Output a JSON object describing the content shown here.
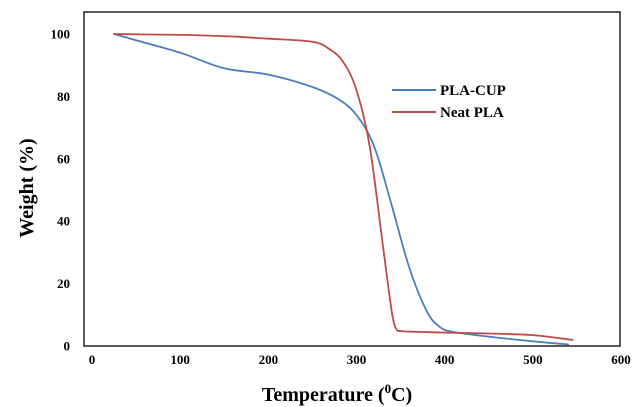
{
  "chart_data": {
    "type": "line",
    "title": "",
    "xlabel": "Temperature (",
    "xlabel_sup": "0",
    "xlabel_suffix": "C)",
    "ylabel": "Weight (%)",
    "xlim": [
      0,
      600
    ],
    "ylim": [
      0,
      105
    ],
    "x_ticks": [
      "0",
      "100",
      "200",
      "300",
      "400",
      "500",
      "600"
    ],
    "y_ticks": [
      "0",
      "20",
      "40",
      "60",
      "80",
      "100"
    ],
    "grid": false,
    "legend_position": "right",
    "series": [
      {
        "name": "PLA-CUP",
        "color": "#4a7ebb",
        "x": [
          25,
          50,
          100,
          150,
          200,
          250,
          280,
          300,
          320,
          340,
          360,
          380,
          395,
          410,
          450,
          500,
          540
        ],
        "y": [
          100,
          98,
          94,
          89,
          87,
          83,
          79,
          74,
          64,
          45,
          25,
          11,
          6,
          4.5,
          3,
          1.5,
          0.5
        ]
      },
      {
        "name": "Neat PLA",
        "color": "#be4b48",
        "x": [
          25,
          100,
          150,
          200,
          250,
          270,
          285,
          300,
          315,
          330,
          340,
          345,
          350,
          360,
          400,
          450,
          500,
          530,
          545
        ],
        "y": [
          100,
          99.7,
          99.3,
          98.5,
          97.5,
          95,
          91,
          82,
          64,
          32,
          11,
          5.5,
          4.8,
          4.6,
          4.3,
          4,
          3.5,
          2.5,
          2
        ]
      }
    ]
  }
}
